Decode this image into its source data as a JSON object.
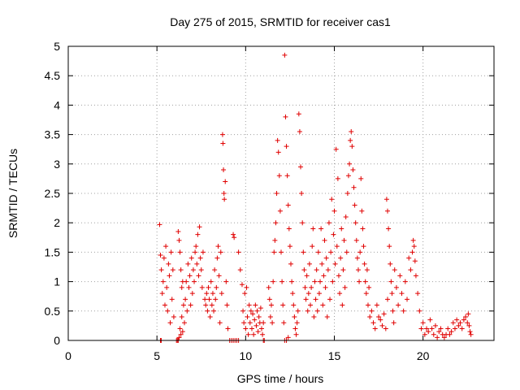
{
  "chart_data": {
    "type": "scatter",
    "title": "Day 275 of 2015, SRMTID for receiver cas1",
    "xlabel": "GPS time / hours",
    "ylabel": "SRMTID / TECUs",
    "xlim": [
      0,
      24
    ],
    "ylim": [
      0,
      5
    ],
    "xticks": [
      0,
      5,
      10,
      15,
      20
    ],
    "yticks": [
      0,
      0.5,
      1,
      1.5,
      2,
      2.5,
      3,
      3.5,
      4,
      4.5,
      5
    ],
    "xtick_labels": [
      "0",
      "5",
      "10",
      "15",
      "20"
    ],
    "ytick_labels": [
      "0",
      "0.5",
      "1",
      "1.5",
      "2",
      "2.5",
      "3",
      "3.5",
      "4",
      "4.5",
      "5"
    ],
    "grid": true,
    "marker": "+",
    "color": "#e00000",
    "series": [
      {
        "name": "cas1",
        "points": [
          [
            5.15,
            1.97
          ],
          [
            5.2,
            1.45
          ],
          [
            5.25,
            1.2
          ],
          [
            5.3,
            0.8
          ],
          [
            5.35,
            1.0
          ],
          [
            5.4,
            1.4
          ],
          [
            5.45,
            0.6
          ],
          [
            5.5,
            1.6
          ],
          [
            5.55,
            0.9
          ],
          [
            5.6,
            0.5
          ],
          [
            5.65,
            1.3
          ],
          [
            5.7,
            1.1
          ],
          [
            5.75,
            0.3
          ],
          [
            5.8,
            1.5
          ],
          [
            5.85,
            0.7
          ],
          [
            5.9,
            1.2
          ],
          [
            5.95,
            0.4
          ],
          [
            5.2,
            0.0
          ],
          [
            5.22,
            0.0
          ],
          [
            5.24,
            0.0
          ],
          [
            6.1,
            0.0
          ],
          [
            6.15,
            0.0
          ],
          [
            6.2,
            0.0
          ],
          [
            6.25,
            0.05
          ],
          [
            6.3,
            0.2
          ],
          [
            6.35,
            0.1
          ],
          [
            6.4,
            0.4
          ],
          [
            6.45,
            0.15
          ],
          [
            6.5,
            0.6
          ],
          [
            6.55,
            0.3
          ],
          [
            6.2,
            1.85
          ],
          [
            6.25,
            1.7
          ],
          [
            6.3,
            1.5
          ],
          [
            6.35,
            1.2
          ],
          [
            6.4,
            0.9
          ],
          [
            6.45,
            1.0
          ],
          [
            6.6,
            0.7
          ],
          [
            6.65,
            1.0
          ],
          [
            6.7,
            0.5
          ],
          [
            6.75,
            1.3
          ],
          [
            6.8,
            0.9
          ],
          [
            6.85,
            1.1
          ],
          [
            6.9,
            0.6
          ],
          [
            6.95,
            1.4
          ],
          [
            7.0,
            0.8
          ],
          [
            7.05,
            1.2
          ],
          [
            7.1,
            1.0
          ],
          [
            7.15,
            1.5
          ],
          [
            7.2,
            1.6
          ],
          [
            7.25,
            1.3
          ],
          [
            7.3,
            1.8
          ],
          [
            7.35,
            1.1
          ],
          [
            7.4,
            1.93
          ],
          [
            7.45,
            1.4
          ],
          [
            7.5,
            1.2
          ],
          [
            7.55,
            0.9
          ],
          [
            7.6,
            1.5
          ],
          [
            7.7,
            0.7
          ],
          [
            7.75,
            0.6
          ],
          [
            7.8,
            0.8
          ],
          [
            7.85,
            0.5
          ],
          [
            7.9,
            0.9
          ],
          [
            7.95,
            0.7
          ],
          [
            8.0,
            0.4
          ],
          [
            8.05,
            1.0
          ],
          [
            8.1,
            0.6
          ],
          [
            8.15,
            0.8
          ],
          [
            8.2,
            0.5
          ],
          [
            8.25,
            1.2
          ],
          [
            8.3,
            0.7
          ],
          [
            8.35,
            0.9
          ],
          [
            8.4,
            1.4
          ],
          [
            8.45,
            1.6
          ],
          [
            8.5,
            1.1
          ],
          [
            8.55,
            0.3
          ],
          [
            8.6,
            1.5
          ],
          [
            8.65,
            0.8
          ],
          [
            8.7,
            3.5
          ],
          [
            8.72,
            3.35
          ],
          [
            8.75,
            2.9
          ],
          [
            8.78,
            2.5
          ],
          [
            8.8,
            2.4
          ],
          [
            8.85,
            2.7
          ],
          [
            8.9,
            1.0
          ],
          [
            8.95,
            0.6
          ],
          [
            9.0,
            0.2
          ],
          [
            9.1,
            0.0
          ],
          [
            9.2,
            0.0
          ],
          [
            9.3,
            0.0
          ],
          [
            9.4,
            0.0
          ],
          [
            9.5,
            0.0
          ],
          [
            9.6,
            0.0
          ],
          [
            9.3,
            1.8
          ],
          [
            9.35,
            1.75
          ],
          [
            9.6,
            1.5
          ],
          [
            9.7,
            1.2
          ],
          [
            9.8,
            0.95
          ],
          [
            9.85,
            0.5
          ],
          [
            9.9,
            0.3
          ],
          [
            9.95,
            0.8
          ],
          [
            10.0,
            0.2
          ],
          [
            10.05,
            0.9
          ],
          [
            10.1,
            0.4
          ],
          [
            10.15,
            0.1
          ],
          [
            10.2,
            0.6
          ],
          [
            10.25,
            0.3
          ],
          [
            10.3,
            0.5
          ],
          [
            10.35,
            0.2
          ],
          [
            10.4,
            0.45
          ],
          [
            10.45,
            0.1
          ],
          [
            10.5,
            0.35
          ],
          [
            10.55,
            0.6
          ],
          [
            10.6,
            0.25
          ],
          [
            10.65,
            0.5
          ],
          [
            10.7,
            0.15
          ],
          [
            10.75,
            0.4
          ],
          [
            10.8,
            0.3
          ],
          [
            10.85,
            0.55
          ],
          [
            10.9,
            0.2
          ],
          [
            10.95,
            0.1
          ],
          [
            11.0,
            0.3
          ],
          [
            11.0,
            0.0
          ],
          [
            11.05,
            0.0
          ],
          [
            11.3,
            0.9
          ],
          [
            11.35,
            0.7
          ],
          [
            11.4,
            0.4
          ],
          [
            11.45,
            0.6
          ],
          [
            11.5,
            0.3
          ],
          [
            11.55,
            1.0
          ],
          [
            11.6,
            1.5
          ],
          [
            11.65,
            1.7
          ],
          [
            11.7,
            2.0
          ],
          [
            11.75,
            2.5
          ],
          [
            11.8,
            3.4
          ],
          [
            11.85,
            3.2
          ],
          [
            11.9,
            2.8
          ],
          [
            11.95,
            2.2
          ],
          [
            12.0,
            1.5
          ],
          [
            12.05,
            1.0
          ],
          [
            12.1,
            0.6
          ],
          [
            12.15,
            0.3
          ],
          [
            12.2,
            4.85
          ],
          [
            12.25,
            3.8
          ],
          [
            12.3,
            3.3
          ],
          [
            12.35,
            2.8
          ],
          [
            12.4,
            2.3
          ],
          [
            12.45,
            1.9
          ],
          [
            12.5,
            1.6
          ],
          [
            12.55,
            1.3
          ],
          [
            12.6,
            1.0
          ],
          [
            12.65,
            0.8
          ],
          [
            12.7,
            0.6
          ],
          [
            12.75,
            0.4
          ],
          [
            12.8,
            0.2
          ],
          [
            12.85,
            0.1
          ],
          [
            12.9,
            0.3
          ],
          [
            12.95,
            0.5
          ],
          [
            12.2,
            0.0
          ],
          [
            12.3,
            0.0
          ],
          [
            12.4,
            0.05
          ],
          [
            13.0,
            3.85
          ],
          [
            13.05,
            3.55
          ],
          [
            13.1,
            2.95
          ],
          [
            13.15,
            2.5
          ],
          [
            13.2,
            2.0
          ],
          [
            13.25,
            1.5
          ],
          [
            13.3,
            1.2
          ],
          [
            13.35,
            0.9
          ],
          [
            13.4,
            0.7
          ],
          [
            13.45,
            1.1
          ],
          [
            13.5,
            0.5
          ],
          [
            13.55,
            0.8
          ],
          [
            13.6,
            1.3
          ],
          [
            13.65,
            0.6
          ],
          [
            13.7,
            0.9
          ],
          [
            13.75,
            1.6
          ],
          [
            13.8,
            1.9
          ],
          [
            13.85,
            0.4
          ],
          [
            13.9,
            1.0
          ],
          [
            13.95,
            0.7
          ],
          [
            14.0,
            1.2
          ],
          [
            14.05,
            0.5
          ],
          [
            14.1,
            1.5
          ],
          [
            14.15,
            0.8
          ],
          [
            14.2,
            1.0
          ],
          [
            14.25,
            1.9
          ],
          [
            14.3,
            1.3
          ],
          [
            14.35,
            0.6
          ],
          [
            14.4,
            1.1
          ],
          [
            14.45,
            1.7
          ],
          [
            14.5,
            0.9
          ],
          [
            14.55,
            1.4
          ],
          [
            14.6,
            0.4
          ],
          [
            14.65,
            1.2
          ],
          [
            14.7,
            2.0
          ],
          [
            14.75,
            0.7
          ],
          [
            14.8,
            1.5
          ],
          [
            14.85,
            2.4
          ],
          [
            14.9,
            1.0
          ],
          [
            14.95,
            1.8
          ],
          [
            15.0,
            2.2
          ],
          [
            15.05,
            1.3
          ],
          [
            15.1,
            3.25
          ],
          [
            15.15,
            1.6
          ],
          [
            15.2,
            2.75
          ],
          [
            15.25,
            1.1
          ],
          [
            15.3,
            0.8
          ],
          [
            15.35,
            1.4
          ],
          [
            15.4,
            1.9
          ],
          [
            15.45,
            0.6
          ],
          [
            15.5,
            1.2
          ],
          [
            15.55,
            1.7
          ],
          [
            15.6,
            0.9
          ],
          [
            15.65,
            2.1
          ],
          [
            15.7,
            1.5
          ],
          [
            15.75,
            2.5
          ],
          [
            15.8,
            2.8
          ],
          [
            15.85,
            3.0
          ],
          [
            15.9,
            3.4
          ],
          [
            15.95,
            3.55
          ],
          [
            16.0,
            3.3
          ],
          [
            16.05,
            2.9
          ],
          [
            16.1,
            2.6
          ],
          [
            16.15,
            2.3
          ],
          [
            16.2,
            2.0
          ],
          [
            16.25,
            1.7
          ],
          [
            16.3,
            1.4
          ],
          [
            16.35,
            1.2
          ],
          [
            16.4,
            1.0
          ],
          [
            16.45,
            1.5
          ],
          [
            16.5,
            2.75
          ],
          [
            16.55,
            2.2
          ],
          [
            16.6,
            1.9
          ],
          [
            16.65,
            1.6
          ],
          [
            16.7,
            1.3
          ],
          [
            16.75,
            1.0
          ],
          [
            16.8,
            0.8
          ],
          [
            16.85,
            1.2
          ],
          [
            16.9,
            0.6
          ],
          [
            16.95,
            0.9
          ],
          [
            17.0,
            0.4
          ],
          [
            17.1,
            0.5
          ],
          [
            17.2,
            0.3
          ],
          [
            17.3,
            0.2
          ],
          [
            17.4,
            0.6
          ],
          [
            17.5,
            0.4
          ],
          [
            17.6,
            0.35
          ],
          [
            17.7,
            0.25
          ],
          [
            17.8,
            0.45
          ],
          [
            17.9,
            0.2
          ],
          [
            18.0,
            0.7
          ],
          [
            17.95,
            2.4
          ],
          [
            18.0,
            2.2
          ],
          [
            18.05,
            1.9
          ],
          [
            18.1,
            1.6
          ],
          [
            18.15,
            1.3
          ],
          [
            18.2,
            1.0
          ],
          [
            18.25,
            0.8
          ],
          [
            18.3,
            0.5
          ],
          [
            18.35,
            0.3
          ],
          [
            18.4,
            1.2
          ],
          [
            18.5,
            0.9
          ],
          [
            18.6,
            0.6
          ],
          [
            18.7,
            1.1
          ],
          [
            18.8,
            0.8
          ],
          [
            18.9,
            0.5
          ],
          [
            19.0,
            1.0
          ],
          [
            19.1,
            0.7
          ],
          [
            19.2,
            1.4
          ],
          [
            19.3,
            1.2
          ],
          [
            19.4,
            1.5
          ],
          [
            19.45,
            1.7
          ],
          [
            19.5,
            1.6
          ],
          [
            19.55,
            1.35
          ],
          [
            19.6,
            1.1
          ],
          [
            19.7,
            0.8
          ],
          [
            19.8,
            0.5
          ],
          [
            19.9,
            0.2
          ],
          [
            20.0,
            0.3
          ],
          [
            20.1,
            0.1
          ],
          [
            20.2,
            0.2
          ],
          [
            20.3,
            0.15
          ],
          [
            20.4,
            0.35
          ],
          [
            20.5,
            0.2
          ],
          [
            20.6,
            0.1
          ],
          [
            20.7,
            0.25
          ],
          [
            20.8,
            0.05
          ],
          [
            20.9,
            0.15
          ],
          [
            21.0,
            0.2
          ],
          [
            21.1,
            0.1
          ],
          [
            21.2,
            0.05
          ],
          [
            21.3,
            0.1
          ],
          [
            21.4,
            0.2
          ],
          [
            21.5,
            0.1
          ],
          [
            21.6,
            0.15
          ],
          [
            21.7,
            0.3
          ],
          [
            21.8,
            0.2
          ],
          [
            21.9,
            0.35
          ],
          [
            22.0,
            0.25
          ],
          [
            22.1,
            0.3
          ],
          [
            22.2,
            0.2
          ],
          [
            22.3,
            0.35
          ],
          [
            22.4,
            0.4
          ],
          [
            22.5,
            0.3
          ],
          [
            22.55,
            0.45
          ],
          [
            22.6,
            0.25
          ],
          [
            22.65,
            0.15
          ],
          [
            22.7,
            0.1
          ]
        ]
      }
    ]
  }
}
